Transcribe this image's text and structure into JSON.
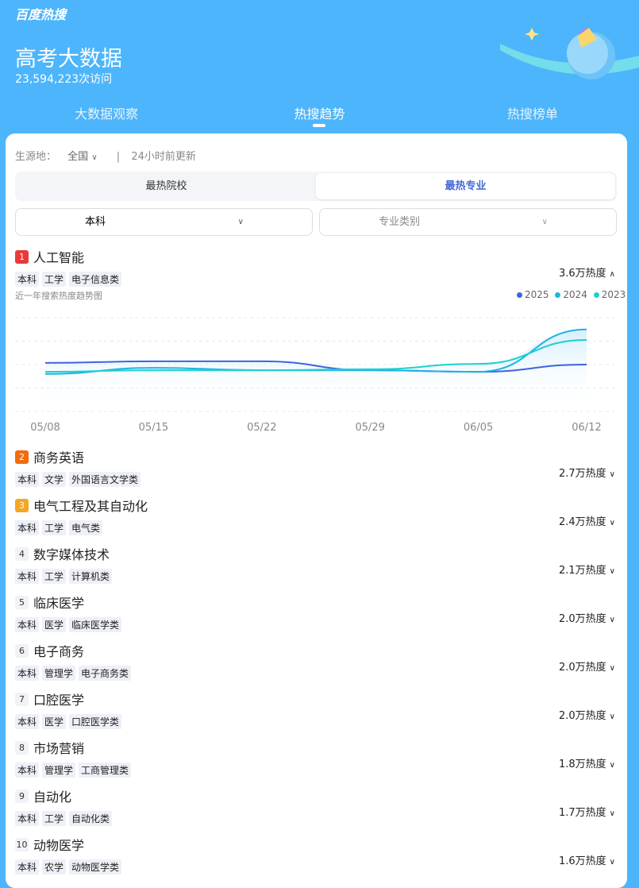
{
  "header": {
    "brand": "百度热搜",
    "title": "高考大数据",
    "visits": "23,594,223次访问"
  },
  "tabs": [
    {
      "label": "大数据观察"
    },
    {
      "label": "热搜趋势",
      "active": true
    },
    {
      "label": "热搜榜单"
    }
  ],
  "filters": {
    "origin_label": "生源地：",
    "origin_value": "全国",
    "updated": "24小时前更新",
    "segments": [
      "最热院校",
      "最热专业"
    ],
    "active_segment": "最热专业",
    "level": "本科",
    "category_placeholder": "专业类别"
  },
  "colors": {
    "accent": "#4469d9",
    "header_bg": "#4db5fb",
    "rank1": "#e83a3a",
    "rank2": "#f26b0f",
    "rank3": "#f5a623",
    "s2025": "#3e63dd",
    "s2024": "#1cb4e3",
    "s2023": "#1fd0d0"
  },
  "items": [
    {
      "rank": "1",
      "name": "人工智能",
      "tags": [
        "本科",
        "工学",
        "电子信息类"
      ],
      "heat": "3.6万热度",
      "expanded": true
    },
    {
      "rank": "2",
      "name": "商务英语",
      "tags": [
        "本科",
        "文学",
        "外国语言文学类"
      ],
      "heat": "2.7万热度"
    },
    {
      "rank": "3",
      "name": "电气工程及其自动化",
      "tags": [
        "本科",
        "工学",
        "电气类"
      ],
      "heat": "2.4万热度"
    },
    {
      "rank": "4",
      "name": "数字媒体技术",
      "tags": [
        "本科",
        "工学",
        "计算机类"
      ],
      "heat": "2.1万热度"
    },
    {
      "rank": "5",
      "name": "临床医学",
      "tags": [
        "本科",
        "医学",
        "临床医学类"
      ],
      "heat": "2.0万热度"
    },
    {
      "rank": "6",
      "name": "电子商务",
      "tags": [
        "本科",
        "管理学",
        "电子商务类"
      ],
      "heat": "2.0万热度"
    },
    {
      "rank": "7",
      "name": "口腔医学",
      "tags": [
        "本科",
        "医学",
        "口腔医学类"
      ],
      "heat": "2.0万热度"
    },
    {
      "rank": "8",
      "name": "市场营销",
      "tags": [
        "本科",
        "管理学",
        "工商管理类"
      ],
      "heat": "1.8万热度"
    },
    {
      "rank": "9",
      "name": "自动化",
      "tags": [
        "本科",
        "工学",
        "自动化类"
      ],
      "heat": "1.7万热度"
    },
    {
      "rank": "10",
      "name": "动物医学",
      "tags": [
        "本科",
        "农学",
        "动物医学类"
      ],
      "heat": "1.6万热度"
    }
  ],
  "chart_data": {
    "type": "line",
    "title": "近一年搜索热度趋势图",
    "categories": [
      "05/08",
      "05/15",
      "05/22",
      "05/29",
      "06/05",
      "06/12"
    ],
    "grid": true,
    "legend": "top-right",
    "ylim": [
      0,
      4
    ],
    "series": [
      {
        "name": "2025",
        "values": [
          2.07,
          2.14,
          2.14,
          1.76,
          1.69,
          2.0
        ]
      },
      {
        "name": "2024",
        "values": [
          1.6,
          1.86,
          1.76,
          1.76,
          1.69,
          3.5
        ]
      },
      {
        "name": "2023",
        "values": [
          1.69,
          1.76,
          1.76,
          1.8,
          2.03,
          3.05
        ]
      }
    ]
  }
}
